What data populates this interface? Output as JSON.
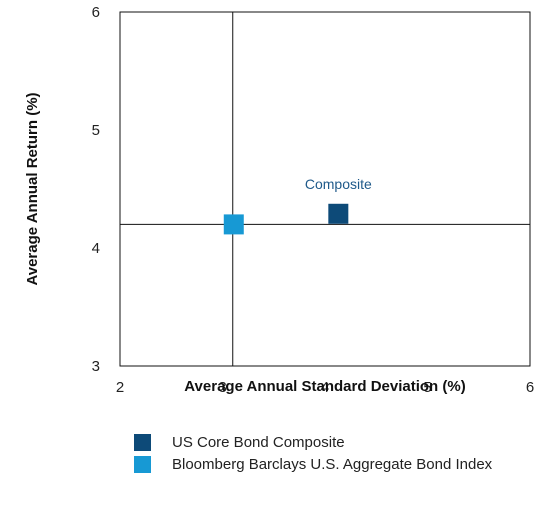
{
  "chart_data": {
    "type": "scatter",
    "xlabel": "Average Annual Standard Deviation (%)",
    "ylabel": "Average Annual Return (%)",
    "xlim": [
      2,
      6
    ],
    "ylim": [
      3,
      6
    ],
    "xticks": [
      "2",
      "3",
      "4",
      "5",
      "6"
    ],
    "yticks": [
      "3",
      "4",
      "5",
      "6"
    ],
    "crosshair": {
      "x": 3.1,
      "y": 4.2
    },
    "series": [
      {
        "name": "US Core Bond Composite",
        "x": 4.13,
        "y": 4.29,
        "color": "#0d4a78",
        "marker": "square",
        "annotation": "Composite"
      },
      {
        "name": "Bloomberg Barclays U.S. Aggregate Bond Index",
        "x": 3.11,
        "y": 4.2,
        "color": "#1799d4",
        "marker": "square"
      }
    ],
    "legend_position": "bottom",
    "grid": false
  }
}
